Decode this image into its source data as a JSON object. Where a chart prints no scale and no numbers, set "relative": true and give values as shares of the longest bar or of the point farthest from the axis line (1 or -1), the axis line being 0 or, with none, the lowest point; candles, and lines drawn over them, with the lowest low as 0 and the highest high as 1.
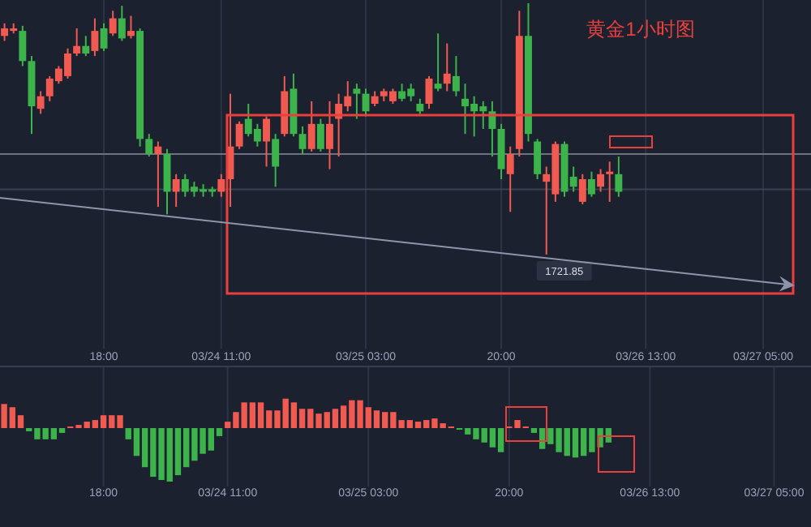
{
  "chart_data": [
    {
      "type": "candlestick",
      "relative": true,
      "title": "黄金1小时图",
      "categories": [
        null,
        null,
        null,
        null,
        null,
        null,
        null,
        null,
        null,
        null,
        null,
        "18:00",
        null,
        null,
        null,
        null,
        null,
        null,
        null,
        null,
        null,
        null,
        null,
        null,
        "03/24 11:00",
        null,
        null,
        null,
        null,
        null,
        null,
        null,
        null,
        null,
        null,
        null,
        null,
        null,
        null,
        null,
        "03/25 03:00",
        null,
        null,
        null,
        null,
        null,
        null,
        null,
        null,
        null,
        null,
        null,
        null,
        null,
        null,
        "20:00",
        null,
        null,
        null,
        null,
        null,
        null,
        null,
        null,
        null,
        null,
        null,
        null,
        null,
        null,
        null,
        "03/26 13:00",
        null,
        null,
        null,
        null,
        null,
        null,
        null,
        null,
        null,
        null,
        null,
        null,
        "03/27 05:00",
        null,
        null,
        null
      ],
      "ohlc": [
        [
          0.87,
          0.92,
          0.85,
          0.9
        ],
        [
          0.89,
          0.92,
          0.88,
          0.9
        ],
        [
          0.89,
          0.91,
          0.75,
          0.77
        ],
        [
          0.77,
          0.79,
          0.48,
          0.59
        ],
        [
          0.58,
          0.65,
          0.56,
          0.63
        ],
        [
          0.63,
          0.71,
          0.61,
          0.7
        ],
        [
          0.69,
          0.75,
          0.68,
          0.74
        ],
        [
          0.71,
          0.82,
          0.7,
          0.8
        ],
        [
          0.8,
          0.9,
          0.79,
          0.83
        ],
        [
          0.83,
          0.87,
          0.79,
          0.8
        ],
        [
          0.81,
          0.94,
          0.79,
          0.89
        ],
        [
          0.9,
          0.92,
          0.81,
          0.82
        ],
        [
          0.88,
          0.97,
          0.87,
          0.94
        ],
        [
          0.94,
          0.99,
          0.85,
          0.86
        ],
        [
          0.87,
          0.95,
          0.86,
          0.89
        ],
        [
          0.89,
          0.9,
          0.43,
          0.46
        ],
        [
          0.46,
          0.48,
          0.39,
          0.4
        ],
        [
          0.4,
          0.45,
          0.19,
          0.43
        ],
        [
          0.4,
          0.42,
          0.16,
          0.25
        ],
        [
          0.25,
          0.32,
          0.19,
          0.3
        ],
        [
          0.3,
          0.32,
          0.23,
          0.25
        ],
        [
          0.27,
          0.29,
          0.23,
          0.25
        ],
        [
          0.26,
          0.28,
          0.23,
          0.25
        ],
        [
          0.26,
          0.27,
          0.23,
          0.25
        ],
        [
          0.25,
          0.32,
          0.23,
          0.3
        ],
        [
          0.3,
          0.64,
          0.19,
          0.43
        ],
        [
          0.43,
          0.53,
          0.42,
          0.52
        ],
        [
          0.54,
          0.6,
          0.47,
          0.48
        ],
        [
          0.5,
          0.52,
          0.43,
          0.45
        ],
        [
          0.45,
          0.55,
          0.35,
          0.54
        ],
        [
          0.46,
          0.48,
          0.27,
          0.35
        ],
        [
          0.48,
          0.71,
          0.47,
          0.65
        ],
        [
          0.66,
          0.72,
          0.47,
          0.48
        ],
        [
          0.48,
          0.51,
          0.4,
          0.42
        ],
        [
          0.42,
          0.61,
          0.41,
          0.52
        ],
        [
          0.52,
          0.54,
          0.41,
          0.42
        ],
        [
          0.42,
          0.61,
          0.34,
          0.52
        ],
        [
          0.54,
          0.64,
          0.39,
          0.6
        ],
        [
          0.59,
          0.69,
          0.57,
          0.63
        ],
        [
          0.66,
          0.68,
          0.54,
          0.64
        ],
        [
          0.64,
          0.66,
          0.55,
          0.57
        ],
        [
          0.6,
          0.65,
          0.59,
          0.63
        ],
        [
          0.63,
          0.66,
          0.61,
          0.65
        ],
        [
          0.61,
          0.66,
          0.6,
          0.65
        ],
        [
          0.65,
          0.68,
          0.61,
          0.62
        ],
        [
          0.66,
          0.68,
          0.61,
          0.63
        ],
        [
          0.6,
          0.62,
          0.56,
          0.57
        ],
        [
          0.6,
          0.71,
          0.58,
          0.7
        ],
        [
          0.68,
          0.88,
          0.65,
          0.66
        ],
        [
          0.68,
          0.84,
          0.65,
          0.72
        ],
        [
          0.71,
          0.79,
          0.63,
          0.65
        ],
        [
          0.62,
          0.68,
          0.48,
          0.59
        ],
        [
          0.6,
          0.63,
          0.47,
          0.57
        ],
        [
          0.59,
          0.61,
          0.5,
          0.57
        ],
        [
          0.57,
          0.61,
          0.39,
          0.5
        ],
        [
          0.5,
          0.52,
          0.3,
          0.34
        ],
        [
          0.32,
          0.43,
          0.17,
          0.4
        ],
        [
          0.42,
          0.97,
          0.39,
          0.87
        ],
        [
          0.87,
          1,
          0.45,
          0.48
        ],
        [
          0.45,
          0.46,
          0.3,
          0.32
        ],
        [
          0.29,
          0.35,
          0,
          0.32
        ],
        [
          0.24,
          0.45,
          0.21,
          0.44
        ],
        [
          0.44,
          0.45,
          0.23,
          0.25
        ],
        [
          0.31,
          0.35,
          0.25,
          0.27
        ],
        [
          0.21,
          0.32,
          0.2,
          0.3
        ],
        [
          0.3,
          0.33,
          0.23,
          0.24
        ],
        [
          0.27,
          0.34,
          0.25,
          0.32
        ],
        [
          0.32,
          0.37,
          0.21,
          0.33
        ],
        [
          0.32,
          0.39,
          0.23,
          0.25
        ],
        null,
        null,
        null,
        null,
        null,
        null,
        null,
        null,
        null,
        null,
        null,
        null,
        null,
        null,
        null,
        null,
        null,
        null,
        null
      ],
      "colors": [
        "#f05a50",
        "#f05a50",
        "#3cb44b",
        "#3cb44b",
        "#f05a50",
        "#f05a50",
        "#f05a50",
        "#f05a50",
        "#f05a50",
        "#3cb44b",
        "#f05a50",
        "#3cb44b",
        "#f05a50",
        "#3cb44b",
        "#f05a50",
        "#3cb44b",
        "#3cb44b",
        "#f05a50",
        "#3cb44b",
        "#f05a50",
        "#3cb44b",
        "#3cb44b",
        "#3cb44b",
        "#3cb44b",
        "#f05a50",
        "#f05a50",
        "#f05a50",
        "#3cb44b",
        "#3cb44b",
        "#f05a50",
        "#3cb44b",
        "#f05a50",
        "#3cb44b",
        "#3cb44b",
        "#f05a50",
        "#3cb44b",
        "#f05a50",
        "#f05a50",
        "#f05a50",
        "#3cb44b",
        "#3cb44b",
        "#f05a50",
        "#f05a50",
        "#f05a50",
        "#3cb44b",
        "#3cb44b",
        "#3cb44b",
        "#f05a50",
        "#3cb44b",
        "#f05a50",
        "#3cb44b",
        "#3cb44b",
        "#3cb44b",
        "#3cb44b",
        "#3cb44b",
        "#3cb44b",
        "#f05a50",
        "#f05a50",
        "#3cb44b",
        "#3cb44b",
        "#f05a50",
        "#f05a50",
        "#3cb44b",
        "#3cb44b",
        "#f05a50",
        "#3cb44b",
        "#f05a50",
        "#f05a50",
        "#3cb44b",
        null,
        null,
        null,
        null,
        null,
        null,
        null,
        null,
        null,
        null,
        null,
        null,
        null,
        null,
        null,
        null,
        null,
        null,
        null
      ],
      "ref_lines": [
        {
          "axis": "y",
          "value": 0.4,
          "color": "#6b7280"
        },
        {
          "axis": "y",
          "value": 0.26,
          "color": "#3a4152"
        }
      ],
      "annotations": [
        "1721.85"
      ],
      "grid": "x"
    },
    {
      "type": "bar",
      "relative": true,
      "categories": [
        null,
        null,
        null,
        null,
        null,
        null,
        null,
        null,
        null,
        null,
        null,
        null,
        "18:00",
        null,
        null,
        null,
        null,
        null,
        null,
        null,
        null,
        null,
        null,
        null,
        null,
        null,
        null,
        "03/24 11:00",
        null,
        null,
        null,
        null,
        null,
        null,
        null,
        null,
        null,
        null,
        null,
        null,
        null,
        null,
        null,
        null,
        "03/25 03:00",
        null,
        null,
        null,
        null,
        null,
        null,
        null,
        null,
        null,
        null,
        null,
        null,
        null,
        null,
        null,
        null,
        "20:00",
        null,
        null,
        null,
        null,
        null,
        null,
        null,
        null,
        null,
        null,
        null,
        null,
        null,
        null,
        null,
        null,
        "03/26 13:00",
        null,
        null,
        null,
        null,
        null,
        null,
        null,
        null,
        null,
        null,
        null,
        null,
        null,
        null,
        "03/27 05:00",
        null,
        null
      ],
      "values": [
        0.45,
        0.39,
        0.24,
        -0.06,
        -0.21,
        -0.21,
        -0.21,
        -0.09,
        0.03,
        0.06,
        0.12,
        0.15,
        0.24,
        0.24,
        0.24,
        -0.21,
        -0.52,
        -0.73,
        -0.91,
        -0.97,
        -1,
        -0.88,
        -0.73,
        -0.61,
        -0.48,
        -0.42,
        -0.15,
        0.12,
        0.3,
        0.48,
        0.48,
        0.48,
        0.33,
        0.33,
        0.55,
        0.48,
        0.36,
        0.36,
        0.27,
        0.3,
        0.36,
        0.42,
        0.52,
        0.52,
        0.39,
        0.33,
        0.3,
        0.3,
        0.15,
        0.15,
        0.12,
        0.15,
        0.18,
        0.09,
        0.03,
        -0.03,
        -0.12,
        -0.21,
        -0.27,
        -0.36,
        -0.45,
        0.03,
        0.15,
        0.03,
        -0.09,
        -0.39,
        -0.3,
        -0.45,
        -0.52,
        -0.55,
        -0.52,
        -0.45,
        -0.36,
        -0.27,
        null,
        null,
        null,
        null,
        null,
        null,
        null,
        null,
        null,
        null,
        null,
        null,
        null,
        null,
        null,
        null,
        null,
        null,
        null,
        null,
        null,
        null
      ],
      "colors": [
        "#f05a50",
        "#f05a50",
        "#f05a50",
        "#3cb44b",
        "#3cb44b",
        "#3cb44b",
        "#3cb44b",
        "#3cb44b",
        "#f05a50",
        "#f05a50",
        "#f05a50",
        "#f05a50",
        "#f05a50",
        "#f05a50",
        "#f05a50",
        "#3cb44b",
        "#3cb44b",
        "#3cb44b",
        "#3cb44b",
        "#3cb44b",
        "#3cb44b",
        "#3cb44b",
        "#3cb44b",
        "#3cb44b",
        "#3cb44b",
        "#3cb44b",
        "#3cb44b",
        "#f05a50",
        "#f05a50",
        "#f05a50",
        "#f05a50",
        "#f05a50",
        "#f05a50",
        "#f05a50",
        "#f05a50",
        "#f05a50",
        "#f05a50",
        "#f05a50",
        "#f05a50",
        "#f05a50",
        "#f05a50",
        "#f05a50",
        "#f05a50",
        "#f05a50",
        "#f05a50",
        "#f05a50",
        "#f05a50",
        "#f05a50",
        "#f05a50",
        "#f05a50",
        "#f05a50",
        "#f05a50",
        "#f05a50",
        "#f05a50",
        "#f05a50",
        "#3cb44b",
        "#3cb44b",
        "#3cb44b",
        "#3cb44b",
        "#3cb44b",
        "#3cb44b",
        "#f05a50",
        "#f05a50",
        "#f05a50",
        "#3cb44b",
        "#3cb44b",
        "#3cb44b",
        "#3cb44b",
        "#3cb44b",
        "#3cb44b",
        "#3cb44b",
        "#3cb44b",
        "#3cb44b",
        "#3cb44b",
        null,
        null,
        null,
        null,
        null,
        null,
        null,
        null,
        null,
        null,
        null,
        null,
        null,
        null,
        null,
        null,
        null,
        null,
        null,
        null,
        null,
        null
      ],
      "grid": "x"
    }
  ]
}
